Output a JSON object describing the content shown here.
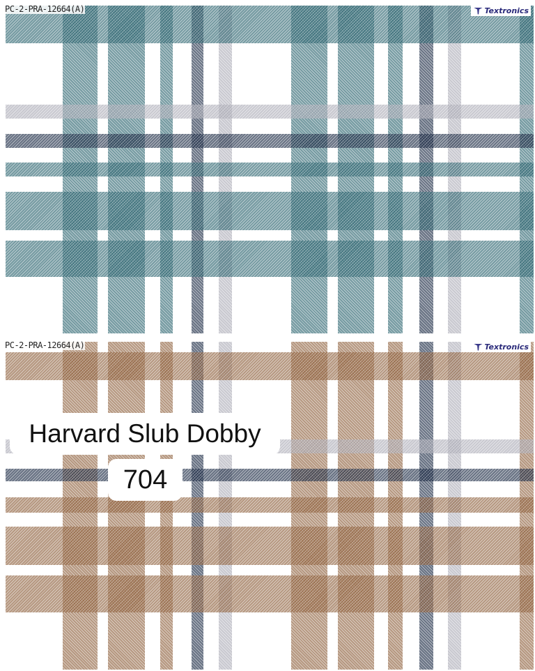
{
  "swatches": [
    {
      "code": "PC-2-PRA-12664(A)",
      "brand": "Textronics",
      "colorway": "teal",
      "main_color": "#245e6a",
      "accent_color": "#0f1f3a",
      "grey_color": "#a9a9b4"
    },
    {
      "code": "PC-2-PRA-12664(A)",
      "brand": "Textronics",
      "colorway": "brown",
      "main_color": "#8b5a35",
      "accent_color": "#0f1f3a",
      "grey_color": "#a9a9b4"
    }
  ],
  "overlay": {
    "title": "Harvard Slub Dobby",
    "number": "704"
  }
}
